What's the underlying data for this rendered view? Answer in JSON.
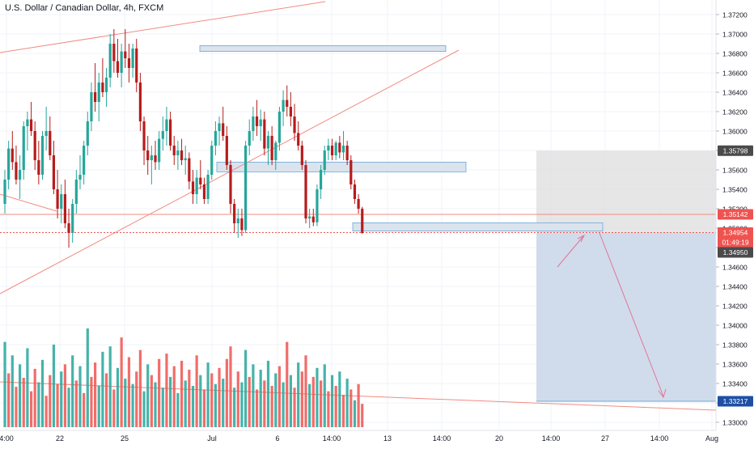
{
  "colors": {
    "up": "#26a69a",
    "down": "#b71c1c",
    "up_volume": "#26a69a",
    "down_volume": "#ef5350",
    "trendline": "#f28b82",
    "grid": "#f0f3fa",
    "zone_fill": "#dbe3ec",
    "zone_stroke": "#6aa7db",
    "target_fill": "#c8d6e8",
    "stop_fill": "#e0e0e0",
    "badge_dark": "#4a4a4a",
    "badge_red": "#ef5350",
    "badge_blue": "#1e4fa3",
    "arrow": "#e57399"
  },
  "chart_data": {
    "type": "candlestick",
    "title": "U.S. Dollar / Canadian Dollar, 4h, FXCM",
    "ylim": [
      1.3295,
      1.3735
    ],
    "y_ticks": [
      "1.37200",
      "1.37000",
      "1.36800",
      "1.36600",
      "1.36400",
      "1.36200",
      "1.36000",
      "1.35800",
      "1.35600",
      "1.35400",
      "1.35200",
      "1.35000",
      "1.34800",
      "1.34600",
      "1.34400",
      "1.34200",
      "1.34000",
      "1.33800",
      "1.33600",
      "1.33400",
      "1.33200",
      "1.33000"
    ],
    "x_ticks": [
      "4:00",
      "22",
      "25",
      "Jul",
      "6",
      "14:00",
      "13",
      "14:00",
      "20",
      "14:00",
      "27",
      "14:00",
      "Aug"
    ],
    "candles": [
      [
        1.3525,
        1.356,
        1.3515,
        1.355
      ],
      [
        1.355,
        1.359,
        1.354,
        1.3582
      ],
      [
        1.3582,
        1.36,
        1.356,
        1.3568
      ],
      [
        1.3568,
        1.3585,
        1.3545,
        1.355
      ],
      [
        1.355,
        1.3575,
        1.353,
        1.356
      ],
      [
        1.356,
        1.361,
        1.355,
        1.3605
      ],
      [
        1.3605,
        1.362,
        1.358,
        1.3612
      ],
      [
        1.3612,
        1.363,
        1.3595,
        1.36
      ],
      [
        1.36,
        1.361,
        1.356,
        1.357
      ],
      [
        1.357,
        1.359,
        1.3545,
        1.3555
      ],
      [
        1.3555,
        1.36,
        1.355,
        1.3595
      ],
      [
        1.3595,
        1.3625,
        1.358,
        1.36
      ],
      [
        1.36,
        1.3615,
        1.357,
        1.3575
      ],
      [
        1.3575,
        1.359,
        1.3535,
        1.354
      ],
      [
        1.354,
        1.356,
        1.351,
        1.352
      ],
      [
        1.352,
        1.3545,
        1.3505,
        1.3535
      ],
      [
        1.3535,
        1.355,
        1.35,
        1.3505
      ],
      [
        1.3505,
        1.352,
        1.348,
        1.3495
      ],
      [
        1.3495,
        1.353,
        1.3485,
        1.3525
      ],
      [
        1.3525,
        1.356,
        1.3515,
        1.355
      ],
      [
        1.355,
        1.3575,
        1.354,
        1.3555
      ],
      [
        1.3555,
        1.359,
        1.3545,
        1.3585
      ],
      [
        1.3585,
        1.362,
        1.3575,
        1.361
      ],
      [
        1.361,
        1.365,
        1.36,
        1.364
      ],
      [
        1.364,
        1.367,
        1.362,
        1.363
      ],
      [
        1.363,
        1.366,
        1.361,
        1.365
      ],
      [
        1.365,
        1.3675,
        1.3635,
        1.364
      ],
      [
        1.364,
        1.3665,
        1.3625,
        1.3655
      ],
      [
        1.3655,
        1.37,
        1.3645,
        1.369
      ],
      [
        1.369,
        1.3705,
        1.366,
        1.3672
      ],
      [
        1.3672,
        1.3695,
        1.3655,
        1.366
      ],
      [
        1.366,
        1.369,
        1.3645,
        1.3682
      ],
      [
        1.3682,
        1.3705,
        1.3665,
        1.3675
      ],
      [
        1.3675,
        1.369,
        1.365,
        1.3665
      ],
      [
        1.3665,
        1.369,
        1.3655,
        1.3685
      ],
      [
        1.3685,
        1.3695,
        1.364,
        1.365
      ],
      [
        1.365,
        1.366,
        1.36,
        1.361
      ],
      [
        1.361,
        1.3615,
        1.3565,
        1.358
      ],
      [
        1.358,
        1.3595,
        1.3555,
        1.357
      ],
      [
        1.357,
        1.3585,
        1.3545,
        1.3575
      ],
      [
        1.3575,
        1.359,
        1.356,
        1.3568
      ],
      [
        1.3568,
        1.36,
        1.356,
        1.3592
      ],
      [
        1.3592,
        1.3615,
        1.358,
        1.36
      ],
      [
        1.36,
        1.3625,
        1.3585,
        1.3612
      ],
      [
        1.3612,
        1.362,
        1.358,
        1.3585
      ],
      [
        1.3585,
        1.3595,
        1.3565,
        1.3575
      ],
      [
        1.3575,
        1.359,
        1.356,
        1.358
      ],
      [
        1.358,
        1.3592,
        1.3565,
        1.357
      ],
      [
        1.357,
        1.3585,
        1.3555,
        1.3572
      ],
      [
        1.3572,
        1.3578,
        1.354,
        1.3548
      ],
      [
        1.3548,
        1.356,
        1.3525,
        1.3535
      ],
      [
        1.3535,
        1.356,
        1.3525,
        1.3552
      ],
      [
        1.3552,
        1.357,
        1.354,
        1.3545
      ],
      [
        1.3545,
        1.3552,
        1.3525,
        1.353
      ],
      [
        1.353,
        1.356,
        1.3525,
        1.3555
      ],
      [
        1.3555,
        1.359,
        1.355,
        1.3585
      ],
      [
        1.3585,
        1.361,
        1.3575,
        1.36
      ],
      [
        1.36,
        1.3615,
        1.3585,
        1.3608
      ],
      [
        1.3608,
        1.3625,
        1.359,
        1.3595
      ],
      [
        1.3595,
        1.3605,
        1.356,
        1.3565
      ],
      [
        1.3565,
        1.357,
        1.3515,
        1.3525
      ],
      [
        1.3525,
        1.353,
        1.3495,
        1.3505
      ],
      [
        1.3505,
        1.352,
        1.349,
        1.351
      ],
      [
        1.351,
        1.352,
        1.3492,
        1.3498
      ],
      [
        1.3498,
        1.359,
        1.3495,
        1.3585
      ],
      [
        1.3585,
        1.3612,
        1.3575,
        1.36
      ],
      [
        1.36,
        1.3625,
        1.359,
        1.3615
      ],
      [
        1.3615,
        1.3632,
        1.3595,
        1.3605
      ],
      [
        1.3605,
        1.3622,
        1.359,
        1.3612
      ],
      [
        1.3612,
        1.362,
        1.3575,
        1.3582
      ],
      [
        1.3582,
        1.36,
        1.3565,
        1.3595
      ],
      [
        1.3595,
        1.3605,
        1.3565,
        1.357
      ],
      [
        1.357,
        1.359,
        1.356,
        1.3588
      ],
      [
        1.3588,
        1.3625,
        1.358,
        1.362
      ],
      [
        1.362,
        1.3642,
        1.3605,
        1.3632
      ],
      [
        1.3632,
        1.3647,
        1.3615,
        1.3625
      ],
      [
        1.3625,
        1.364,
        1.3605,
        1.3615
      ],
      [
        1.3615,
        1.3628,
        1.359,
        1.3598
      ],
      [
        1.3598,
        1.361,
        1.358,
        1.3585
      ],
      [
        1.3585,
        1.359,
        1.356,
        1.3565
      ],
      [
        1.3565,
        1.357,
        1.3505,
        1.351
      ],
      [
        1.351,
        1.352,
        1.35,
        1.3512
      ],
      [
        1.3512,
        1.352,
        1.3502,
        1.3506
      ],
      [
        1.3506,
        1.3545,
        1.3502,
        1.354
      ],
      [
        1.354,
        1.3565,
        1.353,
        1.356
      ],
      [
        1.356,
        1.3585,
        1.3555,
        1.358
      ],
      [
        1.358,
        1.3592,
        1.357,
        1.3585
      ],
      [
        1.3585,
        1.3592,
        1.357,
        1.3575
      ],
      [
        1.3575,
        1.359,
        1.357,
        1.3588
      ],
      [
        1.3588,
        1.3595,
        1.3572,
        1.3578
      ],
      [
        1.3578,
        1.36,
        1.357,
        1.3585
      ],
      [
        1.3585,
        1.359,
        1.3565,
        1.357
      ],
      [
        1.357,
        1.3575,
        1.354,
        1.3545
      ],
      [
        1.3545,
        1.355,
        1.3525,
        1.353
      ],
      [
        1.353,
        1.3535,
        1.3515,
        1.352
      ],
      [
        1.352,
        1.3522,
        1.3494,
        1.3495
      ]
    ],
    "volumes": [
      {
        "v": 95,
        "up": true
      },
      {
        "v": 60,
        "up": false
      },
      {
        "v": 80,
        "up": true
      },
      {
        "v": 45,
        "up": false
      },
      {
        "v": 70,
        "up": true
      },
      {
        "v": 55,
        "up": false
      },
      {
        "v": 88,
        "up": true
      },
      {
        "v": 40,
        "up": false
      },
      {
        "v": 65,
        "up": false
      },
      {
        "v": 50,
        "up": true
      },
      {
        "v": 75,
        "up": true
      },
      {
        "v": 35,
        "up": false
      },
      {
        "v": 58,
        "up": false
      },
      {
        "v": 92,
        "up": true
      },
      {
        "v": 48,
        "up": false
      },
      {
        "v": 62,
        "up": true
      },
      {
        "v": 70,
        "up": false
      },
      {
        "v": 44,
        "up": true
      },
      {
        "v": 80,
        "up": true
      },
      {
        "v": 52,
        "up": false
      },
      {
        "v": 68,
        "up": true
      },
      {
        "v": 38,
        "up": false
      },
      {
        "v": 110,
        "up": true
      },
      {
        "v": 56,
        "up": false
      },
      {
        "v": 72,
        "up": false
      },
      {
        "v": 46,
        "up": true
      },
      {
        "v": 84,
        "up": true
      },
      {
        "v": 60,
        "up": false
      },
      {
        "v": 90,
        "up": true
      },
      {
        "v": 42,
        "up": false
      },
      {
        "v": 66,
        "up": true
      },
      {
        "v": 100,
        "up": false
      },
      {
        "v": 54,
        "up": true
      },
      {
        "v": 78,
        "up": false
      },
      {
        "v": 48,
        "up": true
      },
      {
        "v": 62,
        "up": false
      },
      {
        "v": 86,
        "up": false
      },
      {
        "v": 40,
        "up": true
      },
      {
        "v": 70,
        "up": true
      },
      {
        "v": 58,
        "up": false
      },
      {
        "v": 50,
        "up": true
      },
      {
        "v": 76,
        "up": false
      },
      {
        "v": 44,
        "up": true
      },
      {
        "v": 82,
        "up": false
      },
      {
        "v": 56,
        "up": true
      },
      {
        "v": 68,
        "up": false
      },
      {
        "v": 38,
        "up": true
      },
      {
        "v": 74,
        "up": false
      },
      {
        "v": 52,
        "up": true
      },
      {
        "v": 64,
        "up": false
      },
      {
        "v": 46,
        "up": true
      },
      {
        "v": 80,
        "up": false
      },
      {
        "v": 58,
        "up": true
      },
      {
        "v": 42,
        "up": false
      },
      {
        "v": 72,
        "up": true
      },
      {
        "v": 60,
        "up": false
      },
      {
        "v": 48,
        "up": true
      },
      {
        "v": 66,
        "up": false
      },
      {
        "v": 54,
        "up": true
      },
      {
        "v": 76,
        "up": false
      },
      {
        "v": 90,
        "up": false
      },
      {
        "v": 44,
        "up": true
      },
      {
        "v": 62,
        "up": false
      },
      {
        "v": 50,
        "up": true
      },
      {
        "v": 86,
        "up": true
      },
      {
        "v": 56,
        "up": false
      },
      {
        "v": 70,
        "up": true
      },
      {
        "v": 42,
        "up": false
      },
      {
        "v": 64,
        "up": true
      },
      {
        "v": 52,
        "up": false
      },
      {
        "v": 74,
        "up": true
      },
      {
        "v": 46,
        "up": false
      },
      {
        "v": 60,
        "up": true
      },
      {
        "v": 68,
        "up": false
      },
      {
        "v": 50,
        "up": true
      },
      {
        "v": 95,
        "up": false
      },
      {
        "v": 58,
        "up": true
      },
      {
        "v": 44,
        "up": false
      },
      {
        "v": 72,
        "up": true
      },
      {
        "v": 62,
        "up": false
      },
      {
        "v": 80,
        "up": false
      },
      {
        "v": 48,
        "up": true
      },
      {
        "v": 56,
        "up": false
      },
      {
        "v": 66,
        "up": true
      },
      {
        "v": 52,
        "up": false
      },
      {
        "v": 70,
        "up": true
      },
      {
        "v": 40,
        "up": false
      },
      {
        "v": 58,
        "up": true
      },
      {
        "v": 46,
        "up": false
      },
      {
        "v": 62,
        "up": true
      },
      {
        "v": 36,
        "up": false
      },
      {
        "v": 54,
        "up": true
      },
      {
        "v": 42,
        "up": false
      },
      {
        "v": 30,
        "up": true
      },
      {
        "v": 48,
        "up": false
      },
      {
        "v": 26,
        "up": false
      }
    ],
    "price_labels": {
      "box_top": "1.35798",
      "line_level": "1.35142",
      "current": "1.34954",
      "countdown": "01:49:19",
      "entry": "1.34950",
      "target": "1.33217"
    }
  }
}
